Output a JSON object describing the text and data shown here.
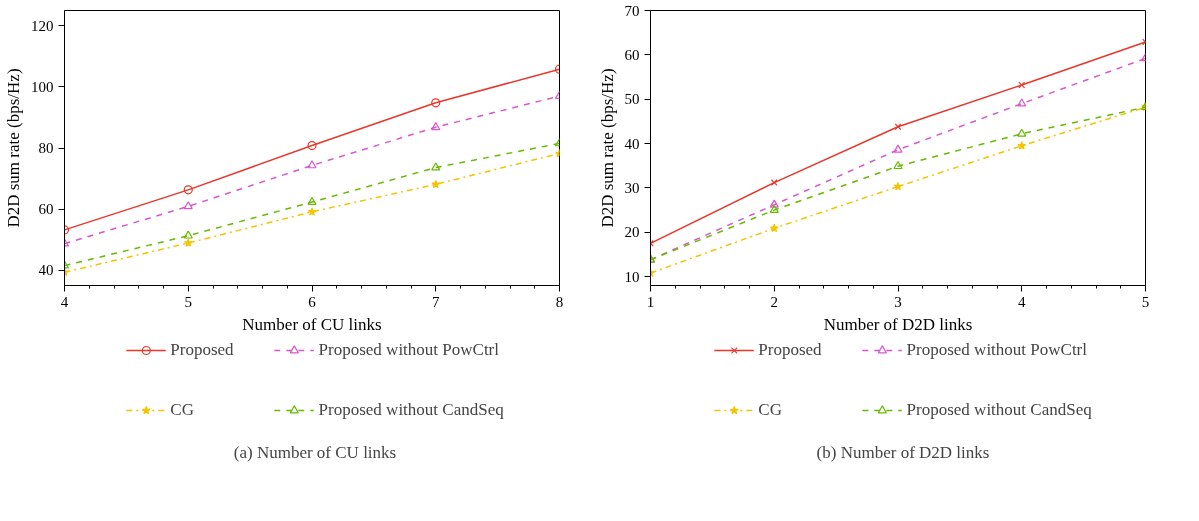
{
  "chart_data": [
    {
      "type": "line",
      "xlabel": "Number of CU links",
      "ylabel": "D2D sum rate (bps/Hz)",
      "x": [
        4,
        5,
        6,
        7,
        8
      ],
      "xlim": [
        4,
        8
      ],
      "xticks": [
        4,
        5,
        6,
        7,
        8
      ],
      "ylim": [
        35,
        125
      ],
      "yticks": [
        40,
        60,
        80,
        100,
        120
      ],
      "grid": false,
      "legend": "bottom",
      "annotations": [
        "(a) Number of CU links"
      ],
      "series": [
        {
          "name": "Proposed",
          "color": "#e8372c",
          "marker": "circle",
          "line_style": "solid",
          "values": [
            53.2,
            66.3,
            80.8,
            94.8,
            105.8
          ]
        },
        {
          "name": "Proposed without PowCtrl",
          "color": "#d957c9",
          "marker": "triangle",
          "line_style": "dashed",
          "values": [
            48.7,
            60.9,
            74.3,
            86.8,
            97.0
          ]
        },
        {
          "name": "CG",
          "color": "#f5c400",
          "marker": "star",
          "line_style": "dashdot",
          "values": [
            39.3,
            48.9,
            59.1,
            68.1,
            78.2
          ]
        },
        {
          "name": "Proposed without CandSeq",
          "color": "#66bb00",
          "marker": "triangle",
          "line_style": "dashed",
          "values": [
            41.5,
            51.3,
            62.3,
            73.6,
            81.5
          ]
        }
      ]
    },
    {
      "type": "line",
      "xlabel": "Number of D2D links",
      "ylabel": "D2D sum rate (bps/Hz)",
      "x": [
        1,
        2,
        3,
        4,
        5
      ],
      "xlim": [
        1,
        5
      ],
      "xticks": [
        1,
        2,
        3,
        4,
        5
      ],
      "ylim": [
        8,
        70
      ],
      "yticks": [
        10,
        20,
        30,
        40,
        50,
        60,
        70
      ],
      "grid": false,
      "legend": "bottom",
      "annotations": [
        "(b) Number of D2D links"
      ],
      "series": [
        {
          "name": "Proposed",
          "color": "#e8372c",
          "marker": "cross",
          "line_style": "solid",
          "values": [
            17.5,
            31.2,
            43.8,
            53.2,
            62.9
          ]
        },
        {
          "name": "Proposed without PowCtrl",
          "color": "#d957c9",
          "marker": "triangle",
          "line_style": "dashed",
          "values": [
            13.8,
            26.2,
            38.6,
            49.0,
            59.2
          ]
        },
        {
          "name": "CG",
          "color": "#f5c400",
          "marker": "star",
          "line_style": "dashdot",
          "values": [
            10.8,
            20.9,
            30.3,
            39.5,
            48.2
          ]
        },
        {
          "name": "Proposed without CandSeq",
          "color": "#66bb00",
          "marker": "triangle",
          "line_style": "dashed",
          "values": [
            13.8,
            25.0,
            34.9,
            42.2,
            48.2
          ]
        }
      ]
    }
  ]
}
